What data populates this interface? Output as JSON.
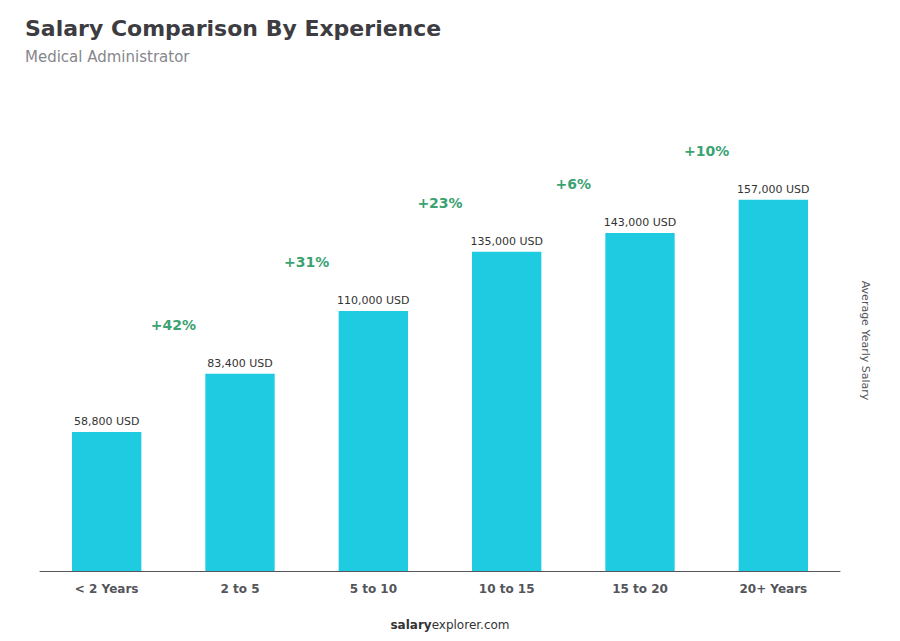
{
  "chart_data": {
    "type": "bar",
    "title": "Salary Comparison By Experience",
    "subtitle": "Medical Administrator",
    "categories": [
      "< 2 Years",
      "2 to 5",
      "5 to 10",
      "10 to 15",
      "15 to 20",
      "20+ Years"
    ],
    "values": [
      58800,
      83400,
      110000,
      135000,
      143000,
      157000
    ],
    "value_labels": [
      "58,800 USD",
      "83,400 USD",
      "110,000 USD",
      "135,000 USD",
      "143,000 USD",
      "157,000 USD"
    ],
    "data_labels": true,
    "annotations": [
      "+42%",
      "+31%",
      "+23%",
      "+6%",
      "+10%"
    ],
    "ylabel": "Average Yearly Salary",
    "footer": [
      "salary",
      "explorer.com"
    ],
    "color": "#1ecbe1",
    "ylim": [
      0,
      195000
    ],
    "tick_labels": "x",
    "grid": false
  }
}
